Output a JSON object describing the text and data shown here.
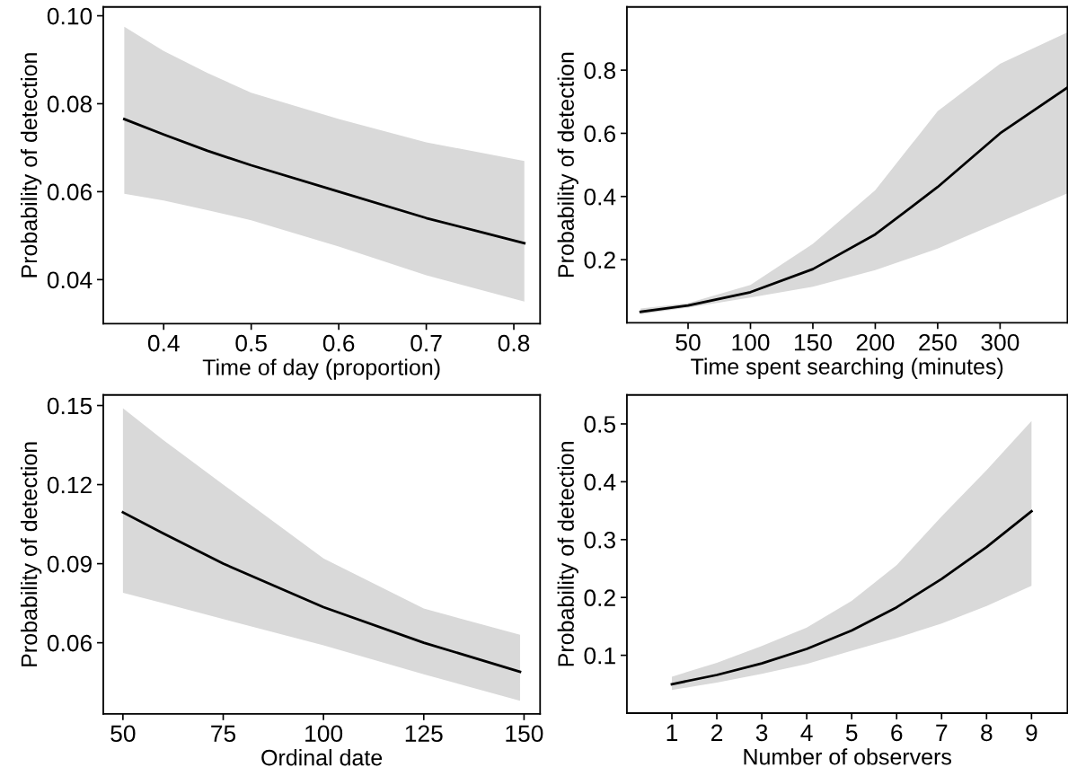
{
  "chart_data": [
    {
      "type": "line",
      "xlabel": "Time of day (proportion)",
      "ylabel": "Probability of detection",
      "xlim": [
        0.331,
        0.83
      ],
      "ylim": [
        0.03,
        0.102
      ],
      "xticks": [
        0.4,
        0.5,
        0.6,
        0.7,
        0.8
      ],
      "yticks": [
        {
          "value": 0.04,
          "label": "0.04"
        },
        {
          "value": 0.06,
          "label": "0.06"
        },
        {
          "value": 0.08,
          "label": "0.08"
        },
        {
          "value": 0.1,
          "label": "0.10"
        }
      ],
      "grid": false,
      "legend": false,
      "series": [
        {
          "color": "#000000",
          "x": [
            0.355,
            0.4,
            0.45,
            0.5,
            0.6,
            0.7,
            0.812
          ],
          "values": [
            0.0765,
            0.073,
            0.0693,
            0.066,
            0.06,
            0.054,
            0.0483
          ],
          "lower": [
            0.0595,
            0.058,
            0.0558,
            0.0535,
            0.0475,
            0.041,
            0.035
          ],
          "upper": [
            0.0975,
            0.092,
            0.087,
            0.0825,
            0.0765,
            0.0712,
            0.067
          ]
        }
      ]
    },
    {
      "type": "line",
      "xlabel": "Time spent searching (minutes)",
      "ylabel": "Probability of detection",
      "xlim": [
        1,
        354
      ],
      "ylim": [
        0,
        1.0
      ],
      "xticks": [
        50,
        100,
        150,
        200,
        250,
        300
      ],
      "yticks": [
        0.2,
        0.4,
        0.6,
        0.8
      ],
      "grid": false,
      "legend": false,
      "series": [
        {
          "color": "#000000",
          "x": [
            12,
            50,
            100,
            150,
            200,
            250,
            300,
            354
          ],
          "values": [
            0.035,
            0.055,
            0.097,
            0.17,
            0.28,
            0.43,
            0.6,
            0.745
          ],
          "lower": [
            0.027,
            0.048,
            0.08,
            0.114,
            0.167,
            0.235,
            0.32,
            0.41
          ],
          "upper": [
            0.045,
            0.062,
            0.12,
            0.25,
            0.42,
            0.67,
            0.82,
            0.92
          ]
        }
      ]
    },
    {
      "type": "line",
      "xlabel": "Ordinal date",
      "ylabel": "Probability of detection",
      "xlim": [
        45.1,
        154
      ],
      "ylim": [
        0.033,
        0.154
      ],
      "xticks": [
        50,
        75,
        100,
        125,
        150
      ],
      "yticks": [
        0.06,
        0.09,
        0.12,
        0.15
      ],
      "grid": false,
      "legend": false,
      "series": [
        {
          "color": "#000000",
          "x": [
            50,
            60,
            75,
            100,
            125,
            149
          ],
          "values": [
            0.1095,
            0.1015,
            0.09,
            0.0735,
            0.06,
            0.049
          ],
          "lower": [
            0.079,
            0.075,
            0.069,
            0.059,
            0.048,
            0.038
          ],
          "upper": [
            0.149,
            0.137,
            0.12,
            0.092,
            0.073,
            0.063
          ]
        }
      ]
    },
    {
      "type": "line",
      "xlabel": "Number of observers",
      "ylabel": "Probability of detection",
      "xlim": [
        0,
        9.8
      ],
      "ylim": [
        0,
        0.55
      ],
      "xticks": [
        1,
        2,
        3,
        4,
        5,
        6,
        7,
        8,
        9
      ],
      "yticks": [
        0.1,
        0.2,
        0.3,
        0.4,
        0.5
      ],
      "grid": false,
      "legend": false,
      "series": [
        {
          "color": "#000000",
          "x": [
            1,
            2,
            3,
            4,
            5,
            6,
            7,
            8,
            9
          ],
          "values": [
            0.05,
            0.066,
            0.086,
            0.111,
            0.143,
            0.183,
            0.232,
            0.287,
            0.349
          ],
          "lower": [
            0.04,
            0.053,
            0.068,
            0.085,
            0.108,
            0.13,
            0.155,
            0.185,
            0.22
          ],
          "upper": [
            0.063,
            0.087,
            0.116,
            0.148,
            0.194,
            0.256,
            0.34,
            0.42,
            0.505
          ]
        }
      ]
    }
  ]
}
